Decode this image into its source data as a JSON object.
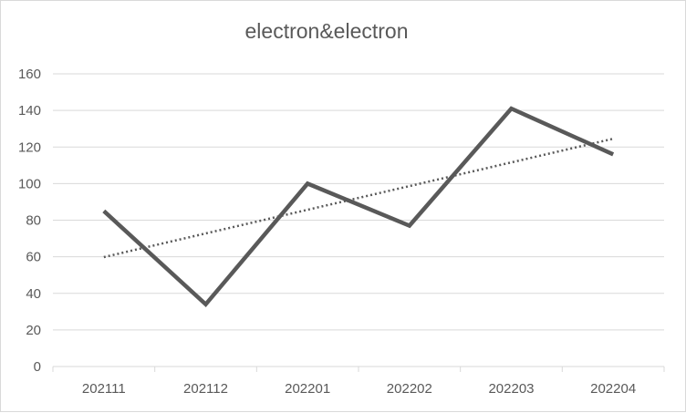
{
  "chart_data": {
    "type": "line",
    "title": "electron&electron",
    "categories": [
      "202111",
      "202112",
      "202201",
      "202202",
      "202203",
      "202204"
    ],
    "series": [
      {
        "values": [
          85,
          34,
          100,
          77,
          141,
          116
        ],
        "color": "#595959"
      }
    ],
    "trendline": {
      "type": "linear",
      "style": "dotted",
      "color": "#595959"
    },
    "ylim": [
      0,
      160
    ],
    "yticks": [
      0,
      20,
      40,
      60,
      80,
      100,
      120,
      140,
      160
    ],
    "grid": true,
    "legend": "none"
  }
}
